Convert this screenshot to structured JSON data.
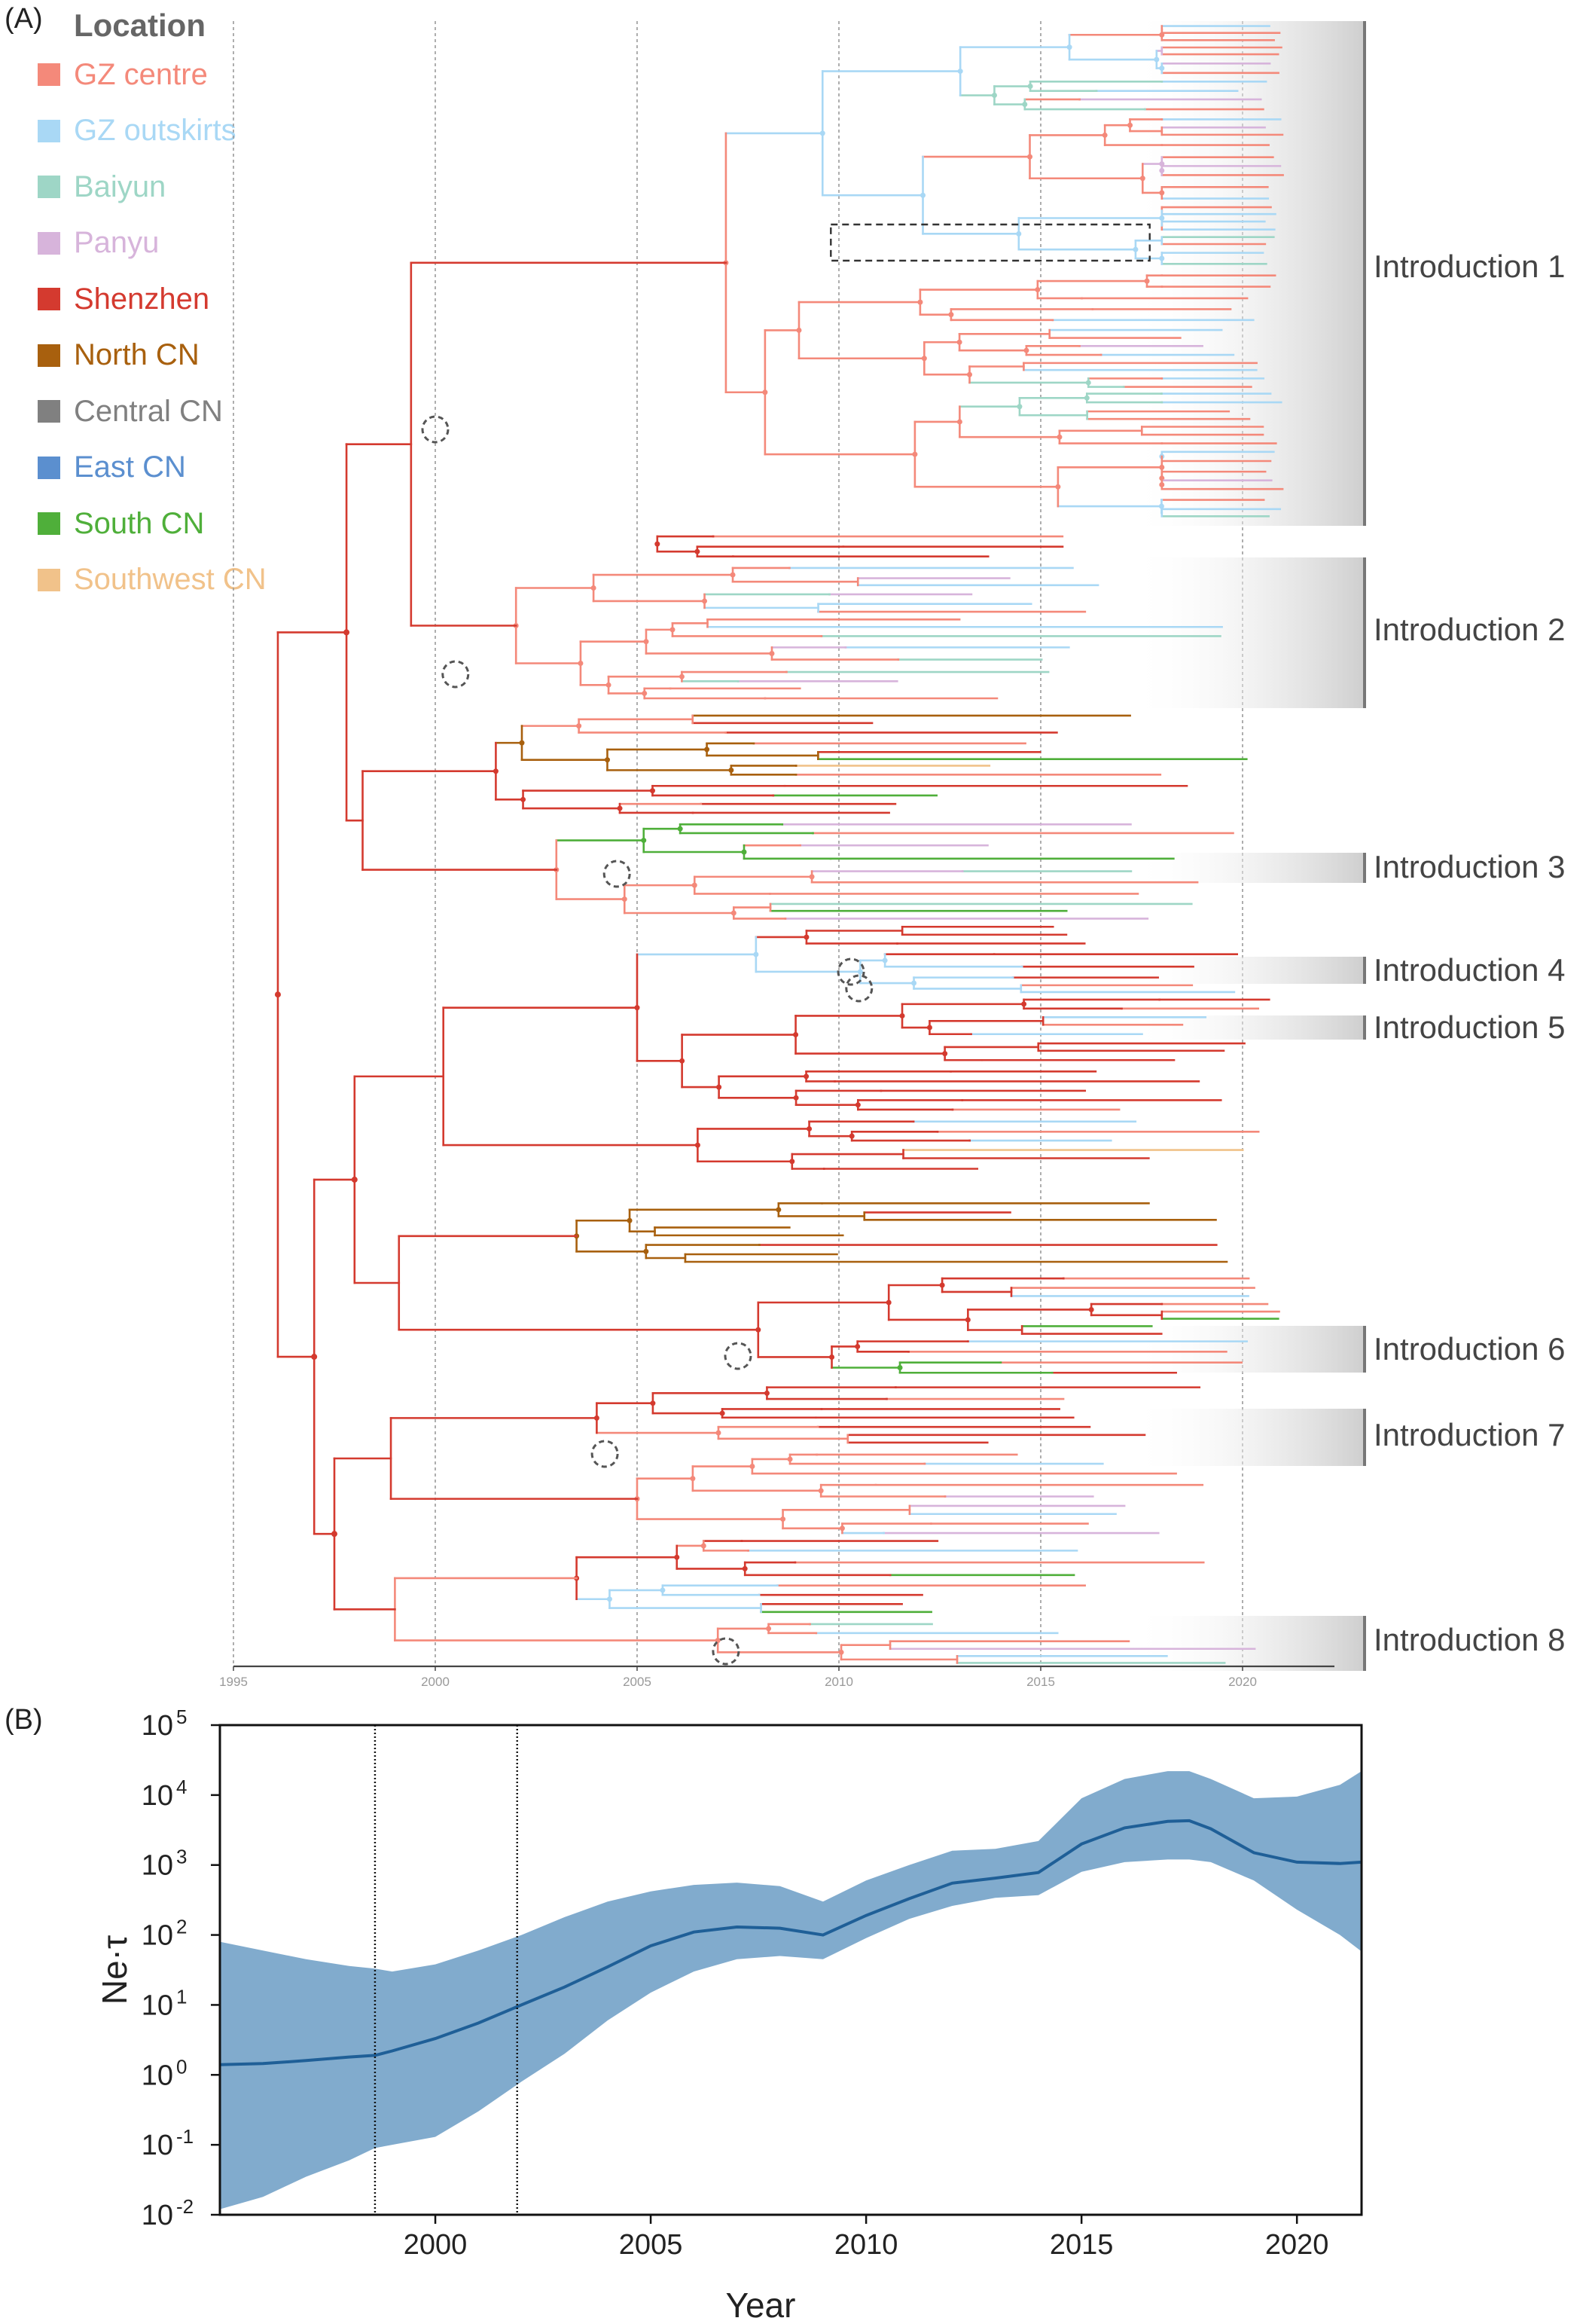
{
  "panel_a_label": "(A)",
  "panel_b_label": "(B)",
  "legend": {
    "title": "Location",
    "items": [
      {
        "label": "GZ centre",
        "color": "#F4897A"
      },
      {
        "label": "GZ outskirts",
        "color": "#A9D8F5"
      },
      {
        "label": "Baiyun",
        "color": "#9ED6C6"
      },
      {
        "label": "Panyu",
        "color": "#D7B4DB"
      },
      {
        "label": "Shenzhen",
        "color": "#D43A2F"
      },
      {
        "label": "North CN",
        "color": "#A8600E"
      },
      {
        "label": "Central CN",
        "color": "#808080"
      },
      {
        "label": "East CN",
        "color": "#5B8FCF"
      },
      {
        "label": "South CN",
        "color": "#4FAF3A"
      },
      {
        "label": "Southwest CN",
        "color": "#F1C28A"
      }
    ]
  },
  "introductions": [
    "Introduction 1",
    "Introduction 2",
    "Introduction 3",
    "Introduction 4",
    "Introduction 5",
    "Introduction 6",
    "Introduction 7",
    "Introduction 8"
  ],
  "chart_data": [
    {
      "type": "phylogenetic-tree",
      "x_axis": {
        "ticks": [
          "1995",
          "2000",
          "2005",
          "2010",
          "2015",
          "2020"
        ],
        "range": [
          1995,
          2023
        ]
      },
      "gridlines": "vertical dotted at tick years",
      "root_year": 1996.1,
      "highlight_box": {
        "x_start": 2009.8,
        "x_end": 2017.7,
        "note": "dashed rectangle around a Shenzhen subclade in Introduction 1"
      },
      "introduction_nodes": [
        {
          "label": "Introduction 1",
          "year": 2000.0
        },
        {
          "label": "Introduction 2",
          "year": 2000.5
        },
        {
          "label": "Introduction 3",
          "year": 2004.5
        },
        {
          "label": "Introduction 4",
          "year": 2010.3
        },
        {
          "label": "Introduction 5",
          "year": 2010.5
        },
        {
          "label": "Introduction 6",
          "year": 2007.5
        },
        {
          "label": "Introduction 7",
          "year": 2004.2
        },
        {
          "label": "Introduction 8",
          "year": 2007.2
        }
      ]
    },
    {
      "type": "area",
      "title": "",
      "xlabel": "Year",
      "ylabel": "Ne·τ",
      "yscale": "log",
      "xlim": [
        1995,
        2021.5
      ],
      "ylim": [
        0.01,
        100000
      ],
      "x_ticks": [
        "2000",
        "2005",
        "2010",
        "2015",
        "2020"
      ],
      "y_ticks": [
        {
          "value": 0.01,
          "base": "10",
          "exp": "-2"
        },
        {
          "value": 0.1,
          "base": "10",
          "exp": "-1"
        },
        {
          "value": 1,
          "base": "10",
          "exp": "0"
        },
        {
          "value": 10,
          "base": "10",
          "exp": "1"
        },
        {
          "value": 100,
          "base": "10",
          "exp": "2"
        },
        {
          "value": 1000,
          "base": "10",
          "exp": "3"
        },
        {
          "value": 10000,
          "base": "10",
          "exp": "4"
        },
        {
          "value": 100000,
          "base": "10",
          "exp": "5"
        }
      ],
      "vertical_lines": [
        1998.6,
        2001.9
      ],
      "series": [
        {
          "x": [
            1995,
            1996,
            1997,
            1998,
            1998.6,
            1999,
            2000,
            2001,
            2002,
            2003,
            2004,
            2005,
            2006,
            2007,
            2008,
            2009,
            2010,
            2011,
            2012,
            2013,
            2014,
            2015,
            2016,
            2017,
            2017.5,
            2018,
            2019,
            2020,
            2021,
            2021.5
          ],
          "median": [
            1.4,
            1.45,
            1.6,
            1.8,
            1.9,
            2.2,
            3.3,
            5.5,
            10,
            18,
            35,
            70,
            110,
            130,
            125,
            100,
            190,
            330,
            550,
            650,
            780,
            2000,
            3400,
            4200,
            4300,
            3300,
            1500,
            1100,
            1050,
            1100
          ],
          "lower": [
            0.012,
            0.018,
            0.035,
            0.06,
            0.09,
            0.1,
            0.13,
            0.3,
            0.8,
            2,
            6,
            15,
            30,
            45,
            50,
            45,
            90,
            170,
            260,
            340,
            370,
            800,
            1100,
            1200,
            1200,
            1100,
            600,
            230,
            100,
            58
          ],
          "upper": [
            80,
            60,
            45,
            36,
            33,
            30,
            38,
            60,
            100,
            180,
            300,
            420,
            520,
            560,
            500,
            300,
            600,
            1000,
            1600,
            1700,
            2200,
            9000,
            17000,
            22000,
            22000,
            17000,
            9000,
            9500,
            14000,
            22000
          ]
        }
      ]
    }
  ]
}
